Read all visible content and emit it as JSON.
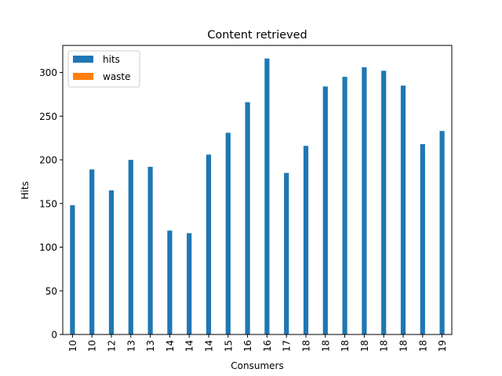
{
  "chart_data": {
    "type": "bar",
    "title": "Content retrieved",
    "xlabel": "Consumers",
    "ylabel": "Hits",
    "categories": [
      "10",
      "10",
      "12",
      "13",
      "13",
      "14",
      "14",
      "14",
      "15",
      "16",
      "16",
      "17",
      "18",
      "18",
      "18",
      "18",
      "18",
      "18",
      "18",
      "19"
    ],
    "series": [
      {
        "name": "hits",
        "color": "#1f77b4",
        "values": [
          148,
          189,
          165,
          200,
          192,
          119,
          116,
          206,
          231,
          266,
          316,
          185,
          216,
          284,
          295,
          306,
          302,
          285,
          218,
          233
        ]
      },
      {
        "name": "waste",
        "color": "#ff7f0e",
        "values": [
          0,
          0,
          0,
          0,
          0,
          0,
          0,
          0,
          0,
          0,
          0,
          0,
          0,
          0,
          0,
          0,
          0,
          0,
          0,
          0
        ]
      }
    ],
    "ylim": [
      0,
      331
    ],
    "yticks": [
      0,
      50,
      100,
      150,
      200,
      250,
      300
    ],
    "grid": false,
    "legend": "top-left"
  }
}
